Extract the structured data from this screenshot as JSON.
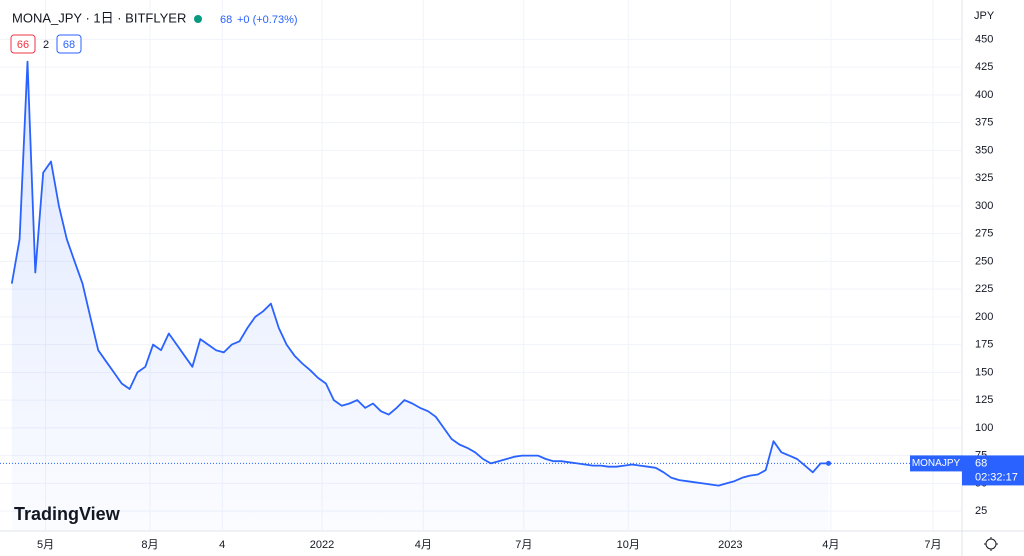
{
  "header": {
    "symbol": "MONA_JPY · 1日 · BITFLYER",
    "price": "68",
    "change": "+0 (+0.73%)",
    "bid": "66",
    "spread": "2",
    "ask": "68",
    "currency": "JPY",
    "watermark": "TradingView"
  },
  "chart_data": {
    "type": "line",
    "color": "#2962ff",
    "values": [
      230,
      270,
      430,
      240,
      330,
      340,
      300,
      270,
      250,
      230,
      200,
      170,
      160,
      150,
      140,
      135,
      150,
      155,
      175,
      170,
      185,
      175,
      165,
      155,
      180,
      175,
      170,
      168,
      175,
      178,
      190,
      200,
      205,
      212,
      190,
      175,
      165,
      158,
      152,
      145,
      140,
      125,
      120,
      122,
      125,
      118,
      122,
      115,
      112,
      118,
      125,
      122,
      118,
      115,
      110,
      100,
      90,
      85,
      82,
      78,
      72,
      68,
      70,
      72,
      74,
      75,
      75,
      75,
      72,
      70,
      70,
      69,
      68,
      67,
      66,
      66,
      65,
      65,
      66,
      67,
      66,
      65,
      64,
      60,
      55,
      53,
      52,
      51,
      50,
      49,
      48,
      50,
      52,
      55,
      57,
      58,
      62,
      88,
      78,
      75,
      72,
      66,
      60,
      68,
      68
    ],
    "xlim": [
      -1.5,
      121
    ],
    "ylim": [
      8,
      481
    ],
    "xticks": [
      {
        "value": 4.3,
        "label": "5月"
      },
      {
        "value": 17.6,
        "label": "8月"
      },
      {
        "value": 26.8,
        "label": "4"
      },
      {
        "value": 39.5,
        "label": "2022"
      },
      {
        "value": 52.4,
        "label": "4月"
      },
      {
        "value": 65.2,
        "label": "7月"
      },
      {
        "value": 78.5,
        "label": "10月"
      },
      {
        "value": 91.5,
        "label": "2023"
      },
      {
        "value": 104.3,
        "label": "4月"
      },
      {
        "value": 117.3,
        "label": "7月"
      }
    ],
    "yticks": [
      25,
      50,
      75,
      100,
      125,
      150,
      175,
      200,
      225,
      250,
      275,
      300,
      325,
      350,
      375,
      400,
      425,
      450
    ],
    "grid": true,
    "price_line": 68,
    "price_tag": {
      "symbol": "MONAJPY",
      "price": "68",
      "countdown": "02:32:17"
    }
  }
}
